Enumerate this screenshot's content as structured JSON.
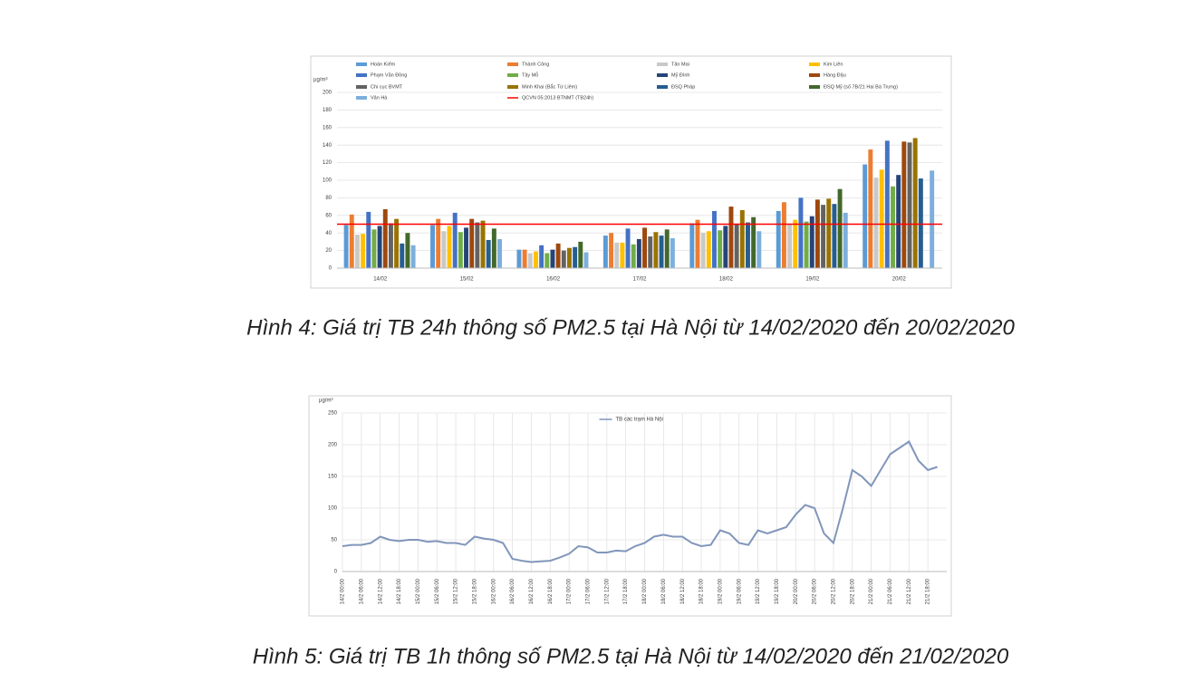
{
  "chart_data": [
    {
      "type": "bar",
      "y_label": "µg/m³",
      "categories": [
        "14/02",
        "15/02",
        "16/02",
        "17/02",
        "18/02",
        "19/02",
        "20/02"
      ],
      "series": [
        {
          "name": "Hoàn Kiếm",
          "color": "#5b9bd5",
          "values": [
            49,
            49,
            21,
            37,
            51,
            65,
            118
          ]
        },
        {
          "name": "Thành Công",
          "color": "#ed7d31",
          "values": [
            61,
            56,
            21,
            40,
            55,
            75,
            135
          ]
        },
        {
          "name": "Tân Mai",
          "color": "#c9c9c9",
          "values": [
            38,
            42,
            17,
            29,
            40,
            50,
            103
          ]
        },
        {
          "name": "Kim Liên",
          "color": "#ffc000",
          "values": [
            39,
            48,
            19,
            29,
            42,
            55,
            112
          ]
        },
        {
          "name": "Phạm Văn Đồng",
          "color": "#4472c4",
          "values": [
            64,
            63,
            26,
            45,
            65,
            80,
            145
          ]
        },
        {
          "name": "Tây Mỗ",
          "color": "#70ad47",
          "values": [
            44,
            41,
            17,
            27,
            43,
            53,
            93
          ]
        },
        {
          "name": "Mỹ Đình",
          "color": "#264478",
          "values": [
            48,
            46,
            21,
            33,
            48,
            59,
            106
          ]
        },
        {
          "name": "Hàng Đậu",
          "color": "#9e480e",
          "values": [
            67,
            56,
            28,
            46,
            70,
            78,
            144
          ]
        },
        {
          "name": "Chi cục BVMT",
          "color": "#636363",
          "values": [
            51,
            52,
            20,
            36,
            50,
            72,
            143
          ]
        },
        {
          "name": "Minh Khai (Bắc Từ Liêm)",
          "color": "#997300",
          "values": [
            56,
            54,
            23,
            41,
            66,
            79,
            148
          ]
        },
        {
          "name": "ĐSQ Pháp",
          "color": "#255e91",
          "values": [
            28,
            32,
            24,
            37,
            52,
            73,
            102
          ]
        },
        {
          "name": "ĐSQ Mỹ (số 7B/21 Hai Bà Trưng)",
          "color": "#43682b",
          "values": [
            40,
            45,
            30,
            44,
            58,
            90,
            null
          ]
        },
        {
          "name": "Vân Hà",
          "color": "#7cafdd",
          "values": [
            26,
            33,
            18,
            34,
            42,
            63,
            111
          ]
        }
      ],
      "reference_line": {
        "name": "QCVN 05:2013 BTNMT (TB24h)",
        "color": "#ff0000",
        "value": 50
      },
      "ylim": [
        0,
        200
      ],
      "yticks": [
        0,
        20,
        40,
        60,
        80,
        100,
        120,
        140,
        160,
        180,
        200
      ],
      "grid": true
    },
    {
      "type": "line",
      "y_label": "µg/m³",
      "categories": [
        "14/2 00:00",
        null,
        "14/2 06:00",
        null,
        "14/2 12:00",
        null,
        "14/2 18:00",
        null,
        "15/2 00:00",
        null,
        "15/2 06:00",
        null,
        "15/2 12:00",
        null,
        "15/2 18:00",
        null,
        "16/2 00:00",
        null,
        "16/2 06:00",
        null,
        "16/2 12:00",
        null,
        "16/2 18:00",
        null,
        "17/2 00:00",
        null,
        "17/2 06:00",
        null,
        "17/2 12:00",
        null,
        "17/2 18:00",
        null,
        "18/2 00:00",
        null,
        "18/2 06:00",
        null,
        "18/2 12:00",
        null,
        "18/2 18:00",
        null,
        "19/2 00:00",
        null,
        "19/2 06:00",
        null,
        "19/2 12:00",
        null,
        "19/2 18:00",
        null,
        "20/2 00:00",
        null,
        "20/2 06:00",
        null,
        "20/2 12:00",
        null,
        "20/2 18:00",
        null,
        "21/2 00:00",
        null,
        "21/2 06:00",
        null,
        "21/2 12:00",
        null,
        "21/2 18:00",
        null
      ],
      "series": [
        {
          "name": "TB các trạm Hà Nội",
          "color": "#8196bb",
          "values": [
            40,
            42,
            42,
            45,
            55,
            50,
            48,
            50,
            50,
            47,
            48,
            45,
            45,
            42,
            55,
            52,
            50,
            45,
            20,
            17,
            15,
            16,
            17,
            22,
            28,
            40,
            38,
            30,
            30,
            33,
            32,
            40,
            45,
            55,
            58,
            55,
            55,
            45,
            40,
            42,
            65,
            60,
            45,
            42,
            65,
            60,
            65,
            70,
            90,
            105,
            100,
            60,
            45,
            100,
            160,
            150,
            135,
            160,
            185,
            195,
            205,
            175,
            160,
            165
          ]
        }
      ],
      "ylim": [
        0,
        250
      ],
      "yticks": [
        0,
        50,
        100,
        150,
        200,
        250
      ],
      "grid": true
    }
  ],
  "captions": [
    "Hình 4: Giá trị TB 24h thông số PM2.5 tại Hà Nội từ 14/02/2020 đến 20/02/2020",
    "Hình 5: Giá trị TB 1h thông số PM2.5 tại Hà Nội từ 14/02/2020 đến 21/02/2020"
  ]
}
